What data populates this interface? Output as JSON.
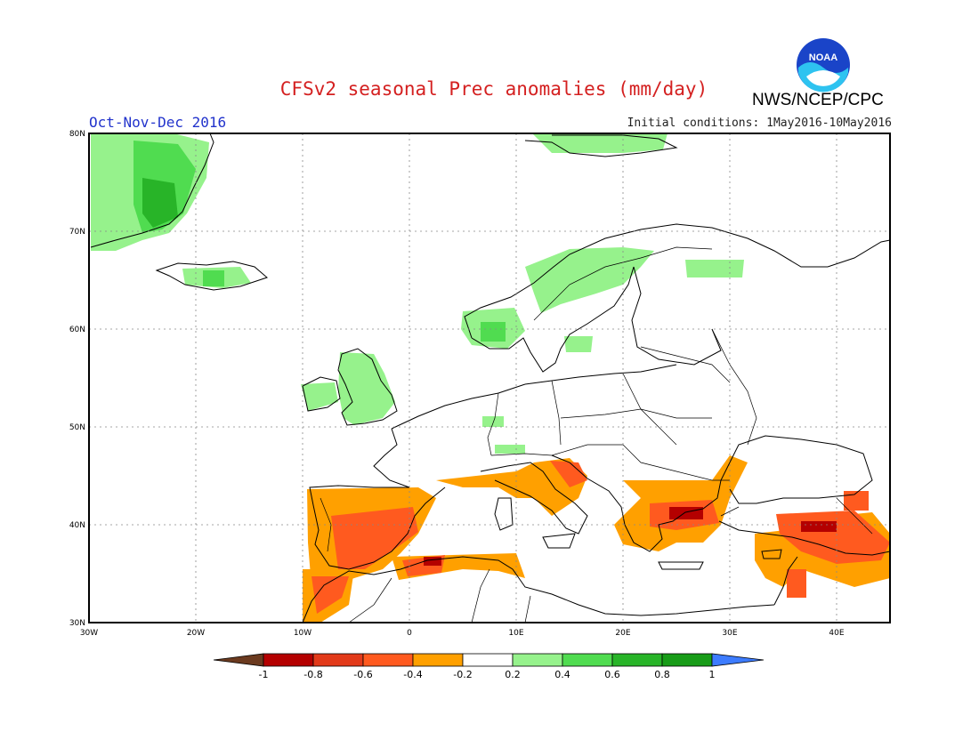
{
  "header": {
    "title": "CFSv2 seasonal Prec anomalies (mm/day)",
    "season": "Oct-Nov-Dec 2016",
    "initial_conditions": "Initial conditions: 1May2016-10May2016",
    "agency": "NWS/NCEP/CPC",
    "logo_text": "NOAA"
  },
  "map": {
    "region": "Europe",
    "lon_range": [
      -30,
      45
    ],
    "lat_range": [
      30,
      80
    ],
    "grid": true,
    "lat_ticks": [
      "80N",
      "70N",
      "60N",
      "50N",
      "40N",
      "30N"
    ],
    "lon_ticks": [
      "30W",
      "20W",
      "10W",
      "0",
      "10E",
      "20E",
      "30E",
      "40E"
    ]
  },
  "legend": {
    "labels": [
      "-1",
      "-0.8",
      "-0.6",
      "-0.4",
      "-0.2",
      "0.2",
      "0.4",
      "0.6",
      "0.8",
      "1"
    ],
    "colors": [
      "#6b3a1f",
      "#b40000",
      "#e23a1a",
      "#ff5a1f",
      "#ffa000",
      "#ffffff",
      "#96f28c",
      "#50dc50",
      "#28b428",
      "#189c18",
      "#3d7cff"
    ]
  }
}
